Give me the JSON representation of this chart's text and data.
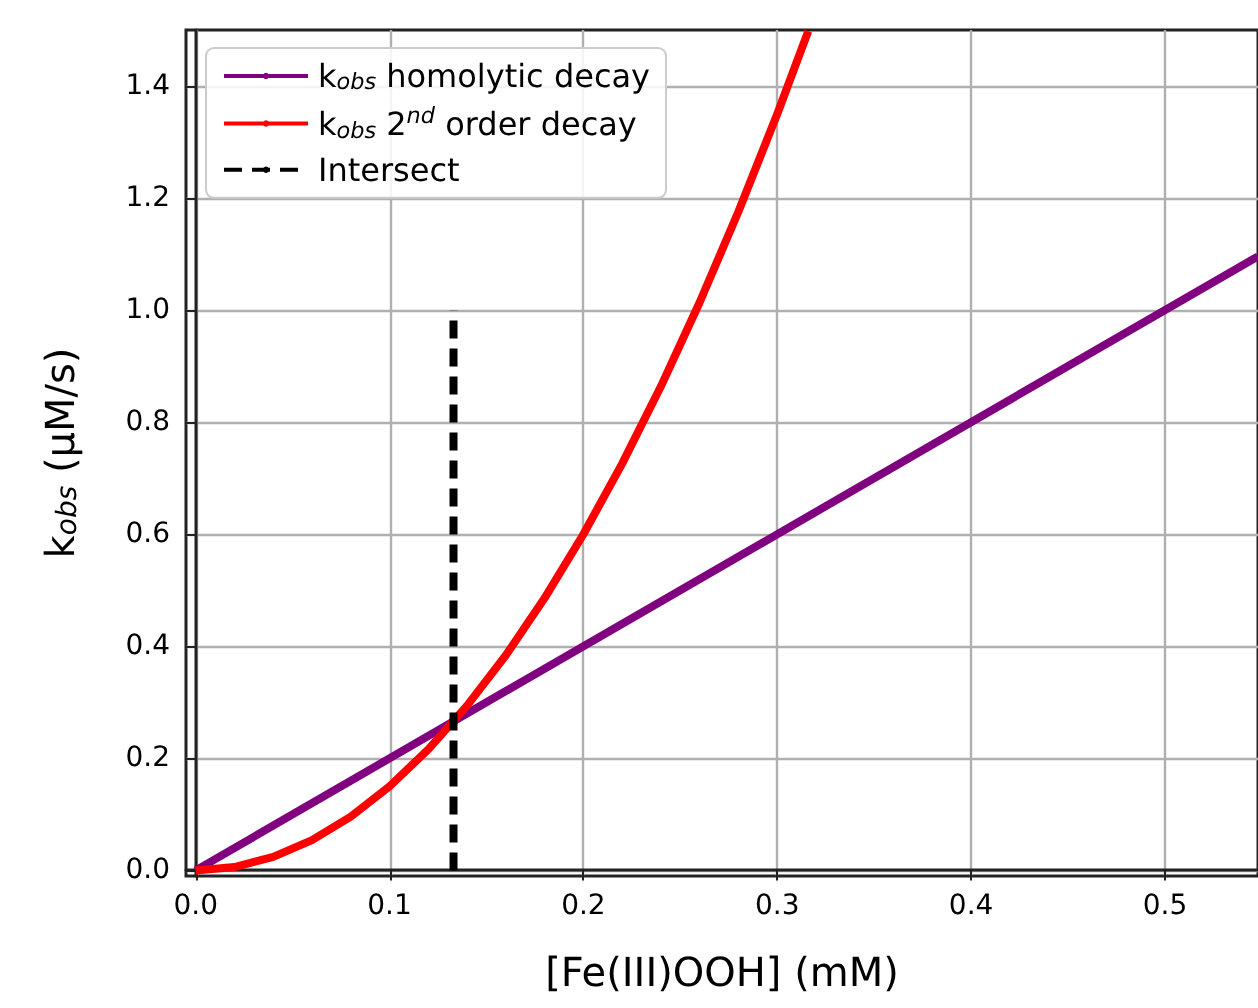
{
  "chart_data": {
    "type": "line",
    "xlabel": "[Fe(III)OOH] (mM)",
    "ylabel": "k$_{obs}$ (μM/s)",
    "xlim": [
      -0.005,
      0.548
    ],
    "ylim": [
      -0.01,
      1.5
    ],
    "xticks": [
      {
        "value": 0,
        "label": "0.0"
      },
      0.1,
      0.2,
      0.3,
      0.4,
      0.5
    ],
    "yticks": [
      {
        "value": 0,
        "label": "0.0"
      },
      0.2,
      0.4,
      0.6,
      0.8,
      {
        "value": 1,
        "label": "1.0"
      },
      1.2,
      1.4
    ],
    "grid": true,
    "legend": "top left",
    "marker": "none",
    "series": [
      {
        "name": "k$_{obs}$ homolytic decay",
        "color": "#800080",
        "line_style": "solid",
        "x": [
          0,
          0.548
        ],
        "values": [
          0,
          1.096
        ]
      },
      {
        "name": "k$_{obs}$ 2$^{nd}$ order decay",
        "color": "#ff0000",
        "line_style": "solid",
        "x": [
          0,
          0.02,
          0.04,
          0.06,
          0.08,
          0.1,
          0.12,
          0.14,
          0.16,
          0.18,
          0.2,
          0.22,
          0.24,
          0.26,
          0.28,
          0.3,
          0.316
        ],
        "values": [
          0,
          0.006,
          0.024,
          0.054,
          0.096,
          0.15,
          0.216,
          0.294,
          0.384,
          0.486,
          0.6,
          0.726,
          0.864,
          1.014,
          1.176,
          1.35,
          1.498
        ]
      },
      {
        "name": "Intersect",
        "color": "#000000",
        "line_style": "dashed",
        "x": [
          0.133,
          0.133
        ],
        "values": [
          0,
          1.0
        ]
      }
    ]
  }
}
